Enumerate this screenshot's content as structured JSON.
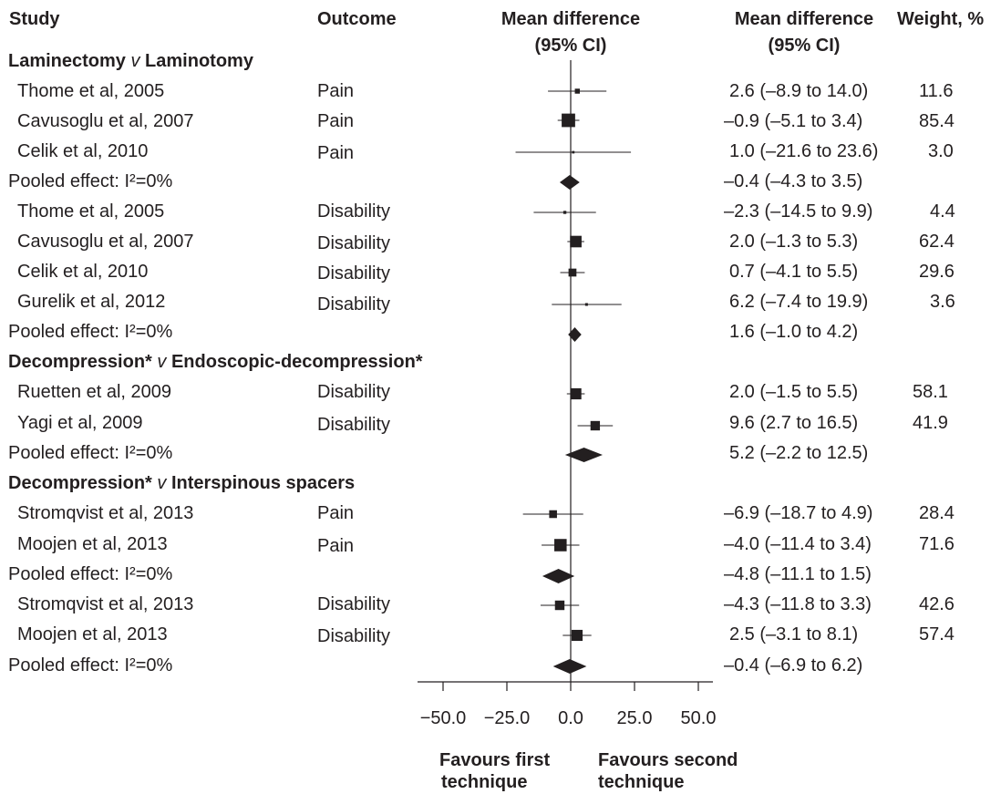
{
  "headers": {
    "study": "Study",
    "outcome": "Outcome",
    "plot_line1": "Mean difference",
    "plot_line2": "(95% CI)",
    "md_line1": "Mean difference",
    "md_line2": "(95% CI)",
    "weight": "Weight, %"
  },
  "groups": [
    {
      "pre": "Laminectomy ",
      "v": "v",
      "post": " Laminotomy"
    },
    {
      "pre": "Decompression* ",
      "v": "v",
      "post": " Endoscopic-decompression*"
    },
    {
      "pre": "Decompression* ",
      "v": "v",
      "post": " Interspinous spacers"
    }
  ],
  "rows": [
    {
      "study": "Thome et al, 2005",
      "outcome": "Pain",
      "ci": "2.6 (–8.9 to 14.0)",
      "weight": "11.6"
    },
    {
      "study": "Cavusoglu et al, 2007",
      "outcome": "Pain",
      "ci": "–0.9 (–5.1 to 3.4)",
      "weight": "85.4"
    },
    {
      "study": "Celik et al, 2010",
      "outcome": "Pain",
      "ci": "1.0 (–21.6 to 23.6)",
      "weight": "3.0"
    },
    {
      "study": "Pooled effect: I²=0%",
      "outcome": "",
      "ci": "–0.4 (–4.3 to 3.5)",
      "weight": ""
    },
    {
      "study": "Thome et al, 2005",
      "outcome": "Disability",
      "ci": "–2.3 (–14.5 to 9.9)",
      "weight": "4.4"
    },
    {
      "study": "Cavusoglu et al, 2007",
      "outcome": "Disability",
      "ci": "2.0 (–1.3 to 5.3)",
      "weight": "62.4"
    },
    {
      "study": "Celik et al, 2010",
      "outcome": "Disability",
      "ci": "0.7 (–4.1 to 5.5)",
      "weight": "29.6"
    },
    {
      "study": "Gurelik et al, 2012",
      "outcome": "Disability",
      "ci": "6.2 (–7.4 to 19.9)",
      "weight": "3.6"
    },
    {
      "study": "Pooled effect: I²=0%",
      "outcome": "",
      "ci": "1.6 (–1.0 to 4.2)",
      "weight": ""
    },
    {
      "study": "Ruetten et al, 2009",
      "outcome": "Disability",
      "ci": "2.0 (–1.5 to 5.5)",
      "weight": "58.1"
    },
    {
      "study": "Yagi et al, 2009",
      "outcome": "Disability",
      "ci": "9.6 (2.7 to 16.5)",
      "weight": "41.9"
    },
    {
      "study": "Pooled effect: I²=0%",
      "outcome": "",
      "ci": "5.2 (–2.2 to 12.5)",
      "weight": ""
    },
    {
      "study": "Stromqvist et al, 2013",
      "outcome": "Pain",
      "ci": "–6.9 (–18.7 to 4.9)",
      "weight": "28.4"
    },
    {
      "study": "Moojen et al, 2013",
      "outcome": "Pain",
      "ci": "–4.0 (–11.4 to 3.4)",
      "weight": "71.6"
    },
    {
      "study": "Pooled effect: I²=0%",
      "outcome": "",
      "ci": "–4.8 (–11.1 to 1.5)",
      "weight": ""
    },
    {
      "study": "Stromqvist et al, 2013",
      "outcome": "Disability",
      "ci": "–4.3 (–11.8 to 3.3)",
      "weight": "42.6"
    },
    {
      "study": "Moojen et al, 2013",
      "outcome": "Disability",
      "ci": "2.5 (–3.1 to 8.1)",
      "weight": "57.4"
    },
    {
      "study": "Pooled effect: I²=0%",
      "outcome": "",
      "ci": "–0.4 (–6.9 to 6.2)",
      "weight": ""
    }
  ],
  "axis": {
    "tick_labels": [
      "−50.0",
      "−25.0",
      "0.0",
      "25.0",
      "50.0"
    ],
    "favours_first_line1": "Favours first",
    "favours_first_line2": "technique",
    "favours_second_line1": "Favours second",
    "favours_second_line2": "technique"
  },
  "chart_data": {
    "type": "forest",
    "x_range": [
      -60,
      60
    ],
    "ticks": [
      -50,
      -25,
      0,
      25,
      50
    ],
    "null_line": 0,
    "colors": {
      "ink": "#231f20"
    },
    "points": [
      {
        "kind": "study",
        "md": 2.6,
        "lo": -8.9,
        "hi": 14.0,
        "weight": 11.6
      },
      {
        "kind": "study",
        "md": -0.9,
        "lo": -5.1,
        "hi": 3.4,
        "weight": 85.4
      },
      {
        "kind": "study",
        "md": 1.0,
        "lo": -21.6,
        "hi": 23.6,
        "weight": 3.0
      },
      {
        "kind": "pooled",
        "md": -0.4,
        "lo": -4.3,
        "hi": 3.5
      },
      {
        "kind": "study",
        "md": -2.3,
        "lo": -14.5,
        "hi": 9.9,
        "weight": 4.4
      },
      {
        "kind": "study",
        "md": 2.0,
        "lo": -1.3,
        "hi": 5.3,
        "weight": 62.4
      },
      {
        "kind": "study",
        "md": 0.7,
        "lo": -4.1,
        "hi": 5.5,
        "weight": 29.6
      },
      {
        "kind": "study",
        "md": 6.2,
        "lo": -7.4,
        "hi": 19.9,
        "weight": 3.6
      },
      {
        "kind": "pooled",
        "md": 1.6,
        "lo": -1.0,
        "hi": 4.2
      },
      {
        "kind": "study",
        "md": 2.0,
        "lo": -1.5,
        "hi": 5.5,
        "weight": 58.1
      },
      {
        "kind": "study",
        "md": 9.6,
        "lo": 2.7,
        "hi": 16.5,
        "weight": 41.9
      },
      {
        "kind": "pooled",
        "md": 5.2,
        "lo": -2.2,
        "hi": 12.5
      },
      {
        "kind": "study",
        "md": -6.9,
        "lo": -18.7,
        "hi": 4.9,
        "weight": 28.4
      },
      {
        "kind": "study",
        "md": -4.0,
        "lo": -11.4,
        "hi": 3.4,
        "weight": 71.6
      },
      {
        "kind": "pooled",
        "md": -4.8,
        "lo": -11.1,
        "hi": 1.5
      },
      {
        "kind": "study",
        "md": -4.3,
        "lo": -11.8,
        "hi": 3.3,
        "weight": 42.6
      },
      {
        "kind": "study",
        "md": 2.5,
        "lo": -3.1,
        "hi": 8.1,
        "weight": 57.4
      },
      {
        "kind": "pooled",
        "md": -0.4,
        "lo": -6.9,
        "hi": 6.2
      }
    ]
  }
}
